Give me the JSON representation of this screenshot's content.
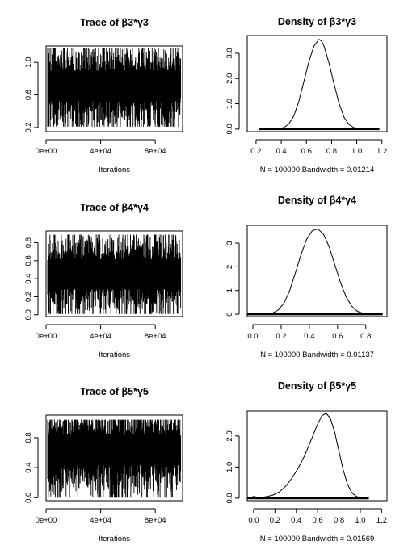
{
  "chart_data": [
    {
      "type": "line",
      "title": "Trace of β3*γ3",
      "xlabel": "Iterations",
      "x_ticks": [
        0,
        40000,
        80000
      ],
      "x_tick_labels": [
        "0e+00",
        "4e+04",
        "8e+04"
      ],
      "xlim": [
        0,
        100000
      ],
      "y_ticks": [
        0.2,
        0.6,
        1.0
      ],
      "y_tick_labels": [
        "0.2",
        "0.6",
        "1.0"
      ],
      "ylim": [
        0.15,
        1.2
      ],
      "trace": {
        "mean": 0.71,
        "spread": 0.145,
        "max": 1.17,
        "min": 0.21
      }
    },
    {
      "type": "line",
      "title": "Density of β3*γ3",
      "xlabel": "N = 100000   Bandwidth = 0.01214",
      "x_ticks": [
        0.2,
        0.4,
        0.6,
        0.8,
        1.0,
        1.2
      ],
      "x_tick_labels": [
        "0.2",
        "0.4",
        "0.6",
        "0.8",
        "1.0",
        "1.2"
      ],
      "xlim": [
        0.13,
        1.24
      ],
      "y_ticks": [
        0.0,
        1.0,
        2.0,
        3.0
      ],
      "y_tick_labels": [
        "0.0",
        "1.0",
        "2.0",
        "3.0"
      ],
      "ylim": [
        -0.1,
        3.7
      ],
      "x": [
        0.26,
        0.38,
        0.42,
        0.46,
        0.5,
        0.54,
        0.58,
        0.62,
        0.66,
        0.7,
        0.72,
        0.74,
        0.78,
        0.82,
        0.86,
        0.9,
        0.94,
        0.98,
        1.02,
        1.1,
        1.16
      ],
      "y": [
        0.0,
        0.02,
        0.06,
        0.2,
        0.52,
        1.1,
        1.88,
        2.68,
        3.28,
        3.55,
        3.48,
        3.28,
        2.6,
        1.78,
        1.0,
        0.46,
        0.17,
        0.05,
        0.01,
        0.0,
        0.0
      ]
    },
    {
      "type": "line",
      "title": "Trace of β4*γ4",
      "xlabel": "Iterations",
      "x_ticks": [
        0,
        40000,
        80000
      ],
      "x_tick_labels": [
        "0e+00",
        "4e+04",
        "8e+04"
      ],
      "xlim": [
        0,
        100000
      ],
      "y_ticks": [
        0.0,
        0.2,
        0.4,
        0.6,
        0.8
      ],
      "y_tick_labels": [
        "0.0",
        "0.2",
        "0.4",
        "0.6",
        "0.8"
      ],
      "ylim": [
        -0.02,
        0.93
      ],
      "trace": {
        "mean": 0.45,
        "spread": 0.13,
        "max": 0.89,
        "min": 0.01
      }
    },
    {
      "type": "line",
      "title": "Density of β4*γ4",
      "xlabel": "N = 100000   Bandwidth = 0.01137",
      "x_ticks": [
        0.0,
        0.2,
        0.4,
        0.6,
        0.8
      ],
      "x_tick_labels": [
        "0.0",
        "0.2",
        "0.4",
        "0.6",
        "0.8"
      ],
      "xlim": [
        -0.04,
        0.95
      ],
      "y_ticks": [
        0,
        1,
        2,
        3
      ],
      "y_tick_labels": [
        "0",
        "1",
        "2",
        "3"
      ],
      "ylim": [
        -0.1,
        3.75
      ],
      "x": [
        0.0,
        0.1,
        0.14,
        0.18,
        0.22,
        0.26,
        0.3,
        0.34,
        0.38,
        0.42,
        0.46,
        0.5,
        0.54,
        0.58,
        0.62,
        0.66,
        0.7,
        0.74,
        0.78,
        0.86,
        0.9
      ],
      "y": [
        0.0,
        0.01,
        0.05,
        0.18,
        0.46,
        0.98,
        1.72,
        2.5,
        3.15,
        3.52,
        3.6,
        3.38,
        2.85,
        2.1,
        1.35,
        0.74,
        0.34,
        0.12,
        0.04,
        0.0,
        0.0
      ]
    },
    {
      "type": "line",
      "title": "Trace of β5*γ5",
      "xlabel": "Iterations",
      "x_ticks": [
        0,
        40000,
        80000
      ],
      "x_tick_labels": [
        "0e+00",
        "4e+04",
        "8e+04"
      ],
      "xlim": [
        0,
        100000
      ],
      "y_ticks": [
        0.0,
        0.4,
        0.8
      ],
      "y_tick_labels": [
        "0.0",
        "0.4",
        "0.8"
      ],
      "ylim": [
        -0.04,
        1.1
      ],
      "trace": {
        "mean": 0.64,
        "spread": 0.16,
        "max": 1.04,
        "min": 0.0
      }
    },
    {
      "type": "line",
      "title": "Density of β5*γ5",
      "xlabel": "N = 100000   Bandwidth = 0.01569",
      "x_ticks": [
        0.0,
        0.2,
        0.4,
        0.6,
        0.8,
        1.0,
        1.2
      ],
      "x_tick_labels": [
        "0.0",
        "0.2",
        "0.4",
        "0.6",
        "0.8",
        "1.0",
        "1.2"
      ],
      "xlim": [
        -0.06,
        1.25
      ],
      "y_ticks": [
        0.0,
        1.0,
        2.0
      ],
      "y_tick_labels": [
        "0.0",
        "1.0",
        "2.0"
      ],
      "ylim": [
        -0.08,
        2.8
      ],
      "x": [
        -0.02,
        0.0,
        0.02,
        0.06,
        0.12,
        0.18,
        0.24,
        0.3,
        0.36,
        0.42,
        0.48,
        0.54,
        0.6,
        0.64,
        0.68,
        0.72,
        0.76,
        0.8,
        0.84,
        0.88,
        0.92,
        0.96,
        1.0,
        1.06
      ],
      "y": [
        0.02,
        0.06,
        0.04,
        0.02,
        0.05,
        0.1,
        0.2,
        0.38,
        0.65,
        0.98,
        1.38,
        1.88,
        2.38,
        2.65,
        2.73,
        2.56,
        2.12,
        1.5,
        0.9,
        0.45,
        0.18,
        0.06,
        0.02,
        0.0
      ]
    }
  ]
}
